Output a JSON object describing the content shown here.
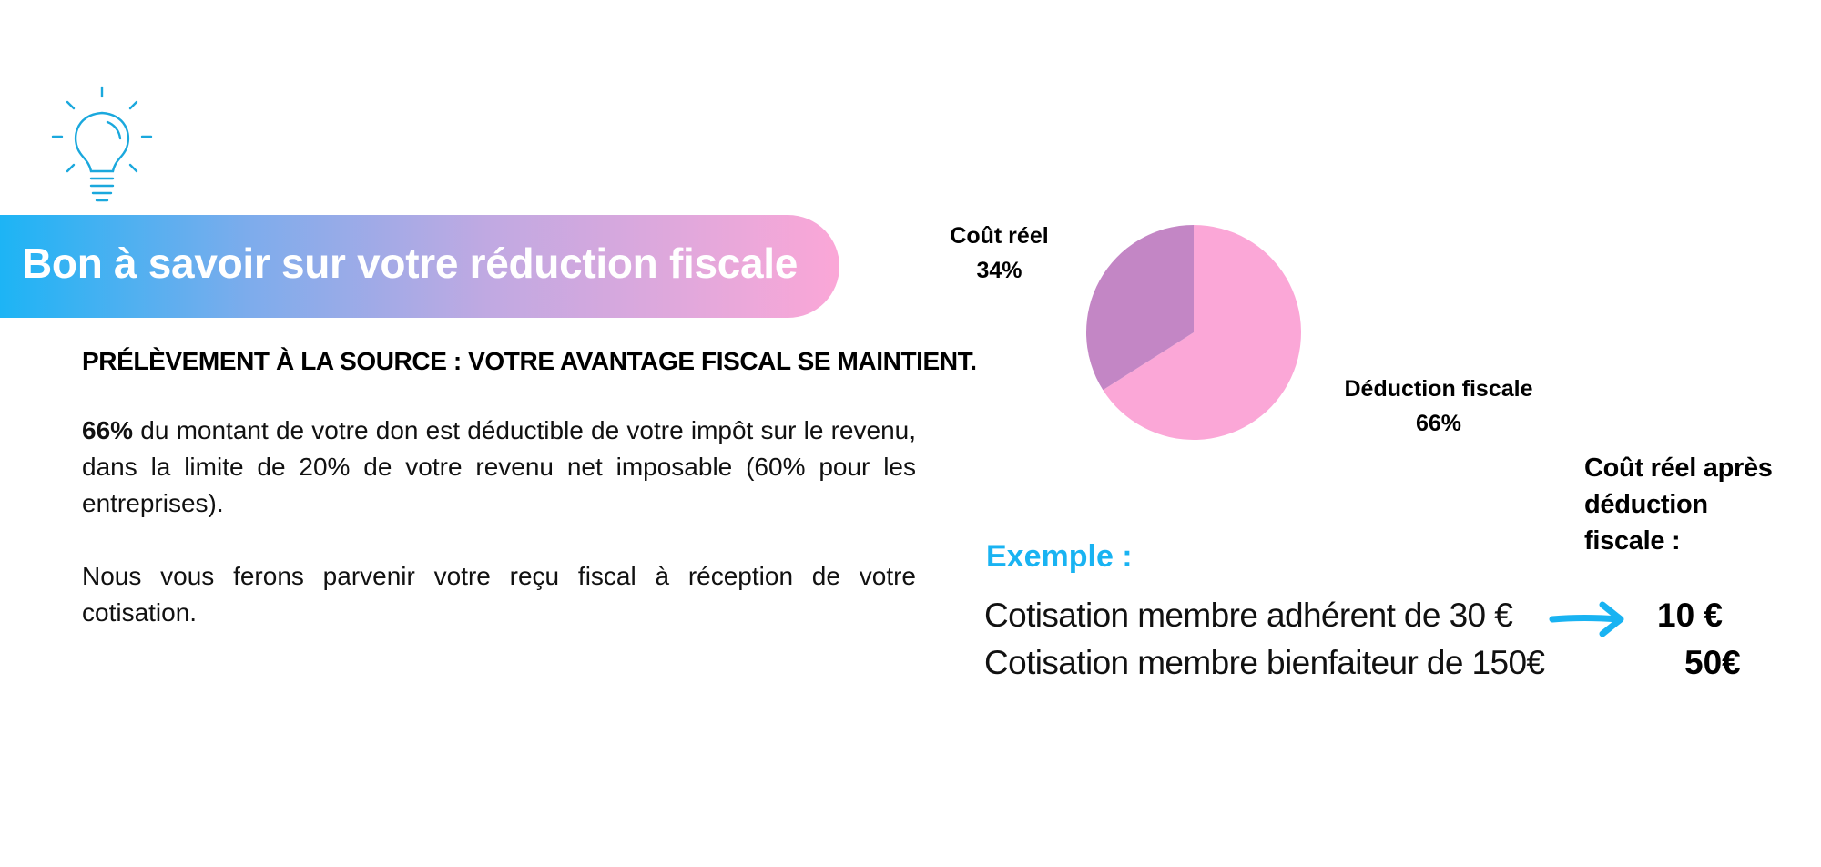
{
  "icon": "lightbulb-icon",
  "colors": {
    "accent_blue": "#19b3f2",
    "banner_start": "#1db4f5",
    "banner_end": "#fba7d7",
    "pie_reduction": "#fba7d7",
    "pie_cost": "#c386c5"
  },
  "banner": {
    "title": "Bon à savoir sur votre réduction fiscale"
  },
  "subheading": "PRÉLÈVEMENT À LA SOURCE : VOTRE AVANTAGE FISCAL SE MAINTIENT.",
  "paragraph1": {
    "bold": "66%",
    "text": " du montant de votre don est déductible de votre impôt sur le revenu, dans la limite de 20% de votre revenu net imposable (60% pour les entreprises)."
  },
  "paragraph2": "Nous vous ferons parvenir votre reçu fiscal à réception de votre cotisation.",
  "chart_data": {
    "type": "pie",
    "slices": [
      {
        "label": "Déduction fiscale",
        "value": 66,
        "value_label": "66%",
        "color": "#fba7d7"
      },
      {
        "label": "Coût réel",
        "value": 34,
        "value_label": "34%",
        "color": "#c386c5"
      }
    ]
  },
  "example": {
    "heading": "Exemple :",
    "result_heading": "Coût réel après déduction fiscale :",
    "rows": [
      {
        "label": "Cotisation membre adhérent de 30 €",
        "result": "10 €"
      },
      {
        "label": "Cotisation membre bienfaiteur de 150€",
        "result": "50€"
      }
    ],
    "arrow_icon": "arrow-right-icon"
  }
}
